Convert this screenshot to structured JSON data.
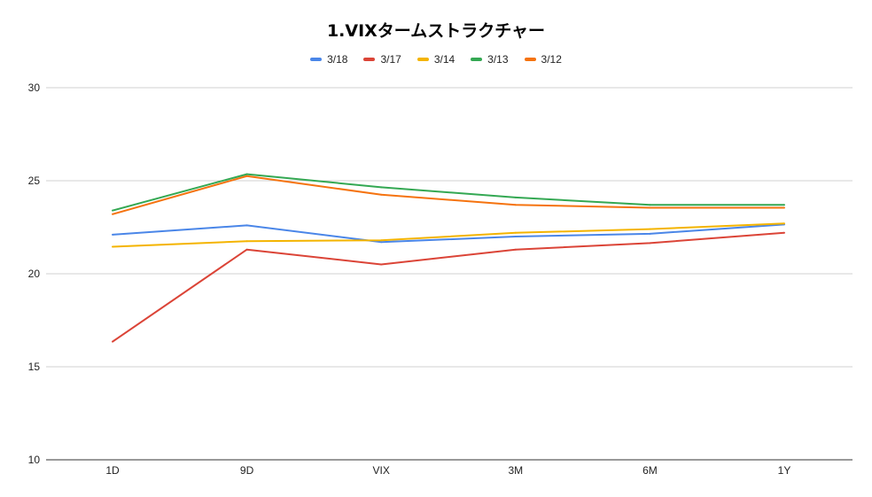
{
  "chart_data": {
    "type": "line",
    "title": "1.VIXタームストラクチャー",
    "xlabel": "",
    "ylabel": "",
    "categories": [
      "1D",
      "9D",
      "VIX",
      "3M",
      "6M",
      "1Y"
    ],
    "ylim": [
      10,
      30
    ],
    "yticks": [
      "10",
      "15",
      "20",
      "25",
      "30"
    ],
    "grid": true,
    "legend_position": "top",
    "series": [
      {
        "name": "3/18",
        "color": "#4a86e8",
        "values": [
          22.1,
          22.6,
          21.7,
          22.0,
          22.15,
          22.65
        ]
      },
      {
        "name": "3/17",
        "color": "#db4437",
        "values": [
          16.35,
          21.3,
          20.5,
          21.3,
          21.65,
          22.2
        ]
      },
      {
        "name": "3/14",
        "color": "#f4b400",
        "values": [
          21.45,
          21.75,
          21.8,
          22.2,
          22.4,
          22.7
        ]
      },
      {
        "name": "3/13",
        "color": "#34a853",
        "values": [
          23.4,
          25.35,
          24.65,
          24.1,
          23.7,
          23.7
        ]
      },
      {
        "name": "3/12",
        "color": "#f5730f",
        "values": [
          23.2,
          25.25,
          24.25,
          23.7,
          23.55,
          23.55
        ]
      }
    ]
  }
}
